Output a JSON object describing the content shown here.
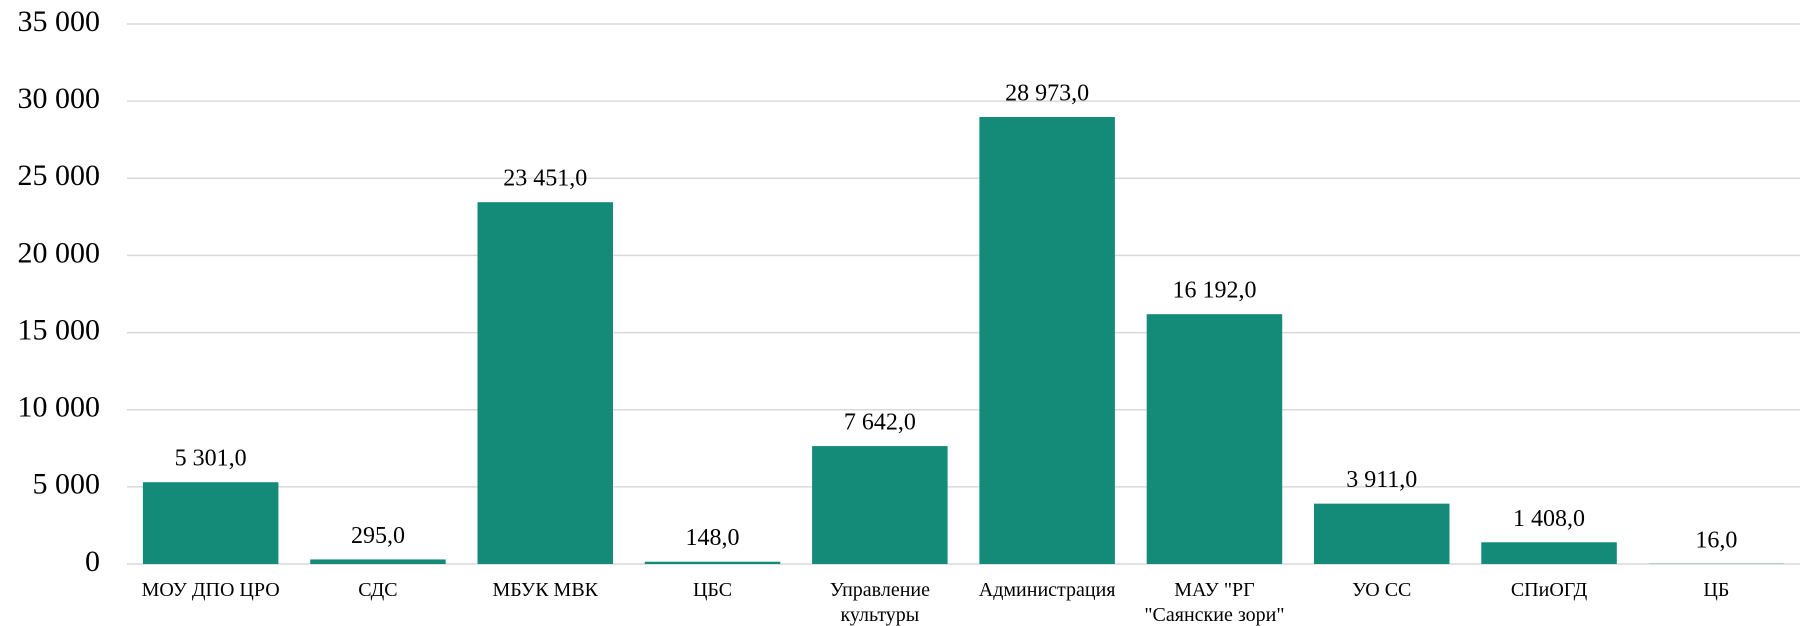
{
  "chart_data": {
    "type": "bar",
    "categories": [
      "МОУ ДПО ЦРО",
      "СДС",
      "МБУК МВК",
      "ЦБС",
      "Управление культуры",
      "Администрация",
      "МАУ \"РГ \"Саянские зори\"",
      "УО СС",
      "СПиОГД",
      "ЦБ"
    ],
    "values": [
      5301,
      295,
      23451,
      148,
      7642,
      28973,
      16192,
      3911,
      1408,
      16
    ],
    "value_labels": [
      "5 301,0",
      "295,0",
      "23 451,0",
      "148,0",
      "7 642,0",
      "28 973,0",
      "16 192,0",
      "3 911,0",
      "1 408,0",
      "16,0"
    ],
    "color": "#148a78",
    "ylim": [
      0,
      35000
    ],
    "yticks": [
      0,
      {
        "value": 5000,
        "label": "5 000"
      },
      {
        "value": 10000,
        "label": "10 000"
      },
      {
        "value": 15000,
        "label": "15 000"
      },
      {
        "value": 20000,
        "label": "20 000"
      },
      {
        "value": 25000,
        "label": "25 000"
      },
      {
        "value": 30000,
        "label": "30 000"
      },
      {
        "value": 35000,
        "label": "35 000"
      }
    ],
    "grid": true
  }
}
